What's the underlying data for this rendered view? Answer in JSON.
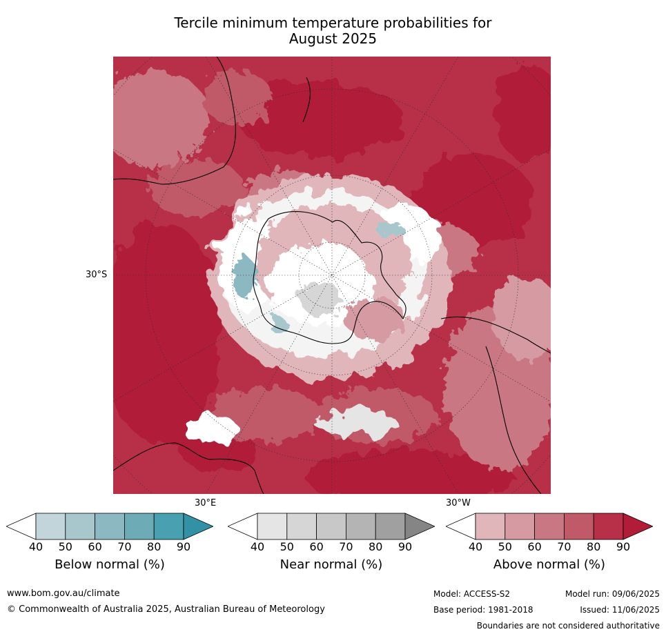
{
  "title": {
    "line1": "Tercile minimum temperature probabilities for",
    "line2": "August 2025"
  },
  "map": {
    "labels": {
      "lat": "30°S",
      "lon_e": "30°E",
      "lon_w": "30°W"
    }
  },
  "legend": {
    "ticks": [
      "40",
      "50",
      "60",
      "70",
      "80",
      "90"
    ],
    "below": {
      "label": "Below normal (%)",
      "colors": [
        "#ffffff",
        "#c1d5db",
        "#a8c7cd",
        "#8cb8c2",
        "#6dabb7",
        "#48a0b0",
        "#3291a4"
      ]
    },
    "near": {
      "label": "Near normal (%)",
      "colors": [
        "#ffffff",
        "#e5e5e5",
        "#d6d6d6",
        "#c8c8c8",
        "#b4b4b4",
        "#a0a0a0",
        "#858585"
      ]
    },
    "above": {
      "label": "Above normal (%)",
      "colors": [
        "#ffffff",
        "#e0b6bb",
        "#d59aa2",
        "#c97883",
        "#c05a69",
        "#b83048",
        "#b11c38"
      ]
    }
  },
  "footer": {
    "website": "www.bom.gov.au/climate",
    "copyright": "© Commonwealth of Australia 2025, Australian Bureau of Meteorology",
    "model": "Model: ACCESS-S2",
    "model_run": "Model run: 09/06/2025",
    "base_period": "Base period: 1981-2018",
    "issued": "Issued: 11/06/2025",
    "disclaimer": "Boundaries are not considered authoritative"
  }
}
